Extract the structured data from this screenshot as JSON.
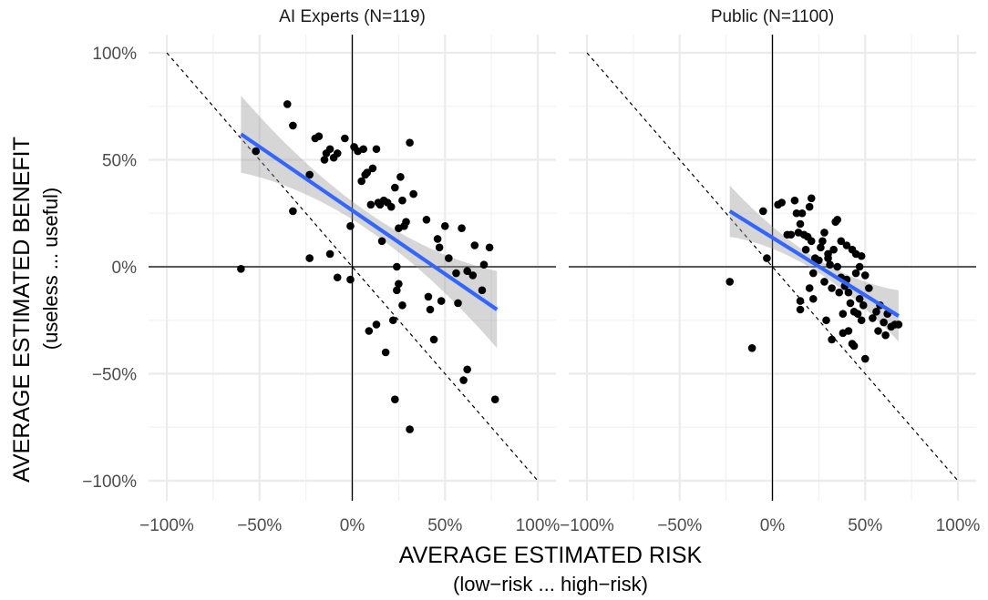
{
  "chart_data": {
    "type": "scatter",
    "facets": [
      {
        "name": "AI Experts (N=119)",
        "points": [
          [
            -60,
            -1
          ],
          [
            -52,
            54
          ],
          [
            -35,
            76
          ],
          [
            -32,
            66
          ],
          [
            -32,
            26
          ],
          [
            -23,
            43
          ],
          [
            -23,
            4
          ],
          [
            -20,
            60
          ],
          [
            -18,
            61
          ],
          [
            -15,
            50
          ],
          [
            -14,
            53
          ],
          [
            -12,
            55
          ],
          [
            -10,
            51
          ],
          [
            -8,
            53
          ],
          [
            -12,
            6
          ],
          [
            -8,
            -5
          ],
          [
            -4,
            60
          ],
          [
            -1,
            19
          ],
          [
            -1,
            -6
          ],
          [
            1,
            56
          ],
          [
            3,
            54
          ],
          [
            5,
            40
          ],
          [
            6,
            55
          ],
          [
            7,
            43
          ],
          [
            8,
            44
          ],
          [
            10,
            29
          ],
          [
            11,
            46
          ],
          [
            13,
            55
          ],
          [
            14,
            30
          ],
          [
            15,
            29
          ],
          [
            16,
            12
          ],
          [
            17,
            31
          ],
          [
            19,
            30
          ],
          [
            21,
            28
          ],
          [
            23,
            37
          ],
          [
            25,
            18
          ],
          [
            26,
            42
          ],
          [
            27,
            31
          ],
          [
            28,
            19
          ],
          [
            29,
            21
          ],
          [
            31,
            58
          ],
          [
            33,
            34
          ],
          [
            9,
            -30
          ],
          [
            13,
            -27
          ],
          [
            18,
            -40
          ],
          [
            22,
            -25
          ],
          [
            24,
            0
          ],
          [
            25,
            -8
          ],
          [
            24,
            -11
          ],
          [
            27,
            -18
          ],
          [
            23,
            -62
          ],
          [
            31,
            -76
          ],
          [
            40,
            22
          ],
          [
            41,
            -14
          ],
          [
            42,
            -20
          ],
          [
            44,
            -34
          ],
          [
            46,
            13
          ],
          [
            47,
            9
          ],
          [
            48,
            -16
          ],
          [
            50,
            19
          ],
          [
            52,
            4
          ],
          [
            56,
            -3
          ],
          [
            57,
            -17
          ],
          [
            59,
            18
          ],
          [
            62,
            -2
          ],
          [
            62,
            -48
          ],
          [
            60,
            -53
          ],
          [
            65,
            -4
          ],
          [
            66,
            10
          ],
          [
            70,
            -11
          ],
          [
            71,
            1
          ],
          [
            74,
            9
          ],
          [
            77,
            -62
          ]
        ],
        "fit": {
          "x_range": [
            -60,
            78
          ],
          "y_at_start": 62,
          "y_at_end": -20
        }
      },
      {
        "name": "Public (N=1100)",
        "points": [
          [
            -23,
            -7
          ],
          [
            -11,
            -38
          ],
          [
            -5,
            26
          ],
          [
            -3,
            4
          ],
          [
            3,
            29
          ],
          [
            5,
            30
          ],
          [
            8,
            15
          ],
          [
            10,
            15
          ],
          [
            12,
            31
          ],
          [
            13,
            25
          ],
          [
            14,
            16
          ],
          [
            15,
            20
          ],
          [
            15,
            -16
          ],
          [
            15,
            -20
          ],
          [
            16,
            25
          ],
          [
            17,
            15
          ],
          [
            18,
            8
          ],
          [
            19,
            14
          ],
          [
            20,
            28
          ],
          [
            20,
            -10
          ],
          [
            21,
            12
          ],
          [
            21,
            32
          ],
          [
            22,
            -3
          ],
          [
            22,
            -15
          ],
          [
            23,
            4
          ],
          [
            25,
            3
          ],
          [
            26,
            9
          ],
          [
            27,
            12
          ],
          [
            28,
            16
          ],
          [
            28,
            -7
          ],
          [
            29,
            -25
          ],
          [
            30,
            4
          ],
          [
            30,
            6
          ],
          [
            31,
            1
          ],
          [
            32,
            -10
          ],
          [
            32,
            -34
          ],
          [
            33,
            8
          ],
          [
            34,
            21
          ],
          [
            35,
            22
          ],
          [
            35,
            0
          ],
          [
            36,
            -12
          ],
          [
            37,
            12
          ],
          [
            37,
            -5
          ],
          [
            38,
            -22
          ],
          [
            38,
            -31
          ],
          [
            39,
            -9
          ],
          [
            40,
            10
          ],
          [
            40,
            -6
          ],
          [
            41,
            -30
          ],
          [
            41,
            -12
          ],
          [
            42,
            -17
          ],
          [
            43,
            8
          ],
          [
            43,
            -36
          ],
          [
            44,
            -21
          ],
          [
            44,
            -37
          ],
          [
            45,
            -3
          ],
          [
            45,
            6
          ],
          [
            46,
            -22
          ],
          [
            47,
            0
          ],
          [
            47,
            -15
          ],
          [
            48,
            5
          ],
          [
            48,
            -25
          ],
          [
            49,
            -18
          ],
          [
            50,
            -4
          ],
          [
            50,
            -43
          ],
          [
            52,
            -10
          ],
          [
            54,
            -24
          ],
          [
            56,
            -21
          ],
          [
            57,
            -30
          ],
          [
            58,
            -18
          ],
          [
            60,
            -26
          ],
          [
            61,
            -32
          ],
          [
            62,
            -22
          ],
          [
            64,
            -28
          ],
          [
            66,
            -27
          ],
          [
            68,
            -27
          ]
        ],
        "fit": {
          "x_range": [
            -23,
            68
          ],
          "y_at_start": 26,
          "y_at_end": -23
        }
      }
    ],
    "xlabel": "AVERAGE ESTIMATED RISK",
    "xlabel_sub": "(low−risk ... high−risk)",
    "ylabel": "AVERAGE ESTIMATED BENEFIT",
    "ylabel_sub": "(useless ... useful)",
    "xlim": [
      -100,
      100
    ],
    "ylim": [
      -100,
      100
    ],
    "x_ticks": [
      "−100%",
      "−50%",
      "0%",
      "50%",
      "100%"
    ],
    "y_ticks": [
      "100%",
      "50%",
      "0%",
      "−50%",
      "−100%"
    ],
    "reference_lines": [
      "y = 0",
      "x = 0",
      "y = -x (dashed)"
    ],
    "grid": true,
    "colors": {
      "points": "#000000",
      "fit": "#3366ff",
      "ribbon": "#999999",
      "grid": "#ebebeb"
    }
  }
}
